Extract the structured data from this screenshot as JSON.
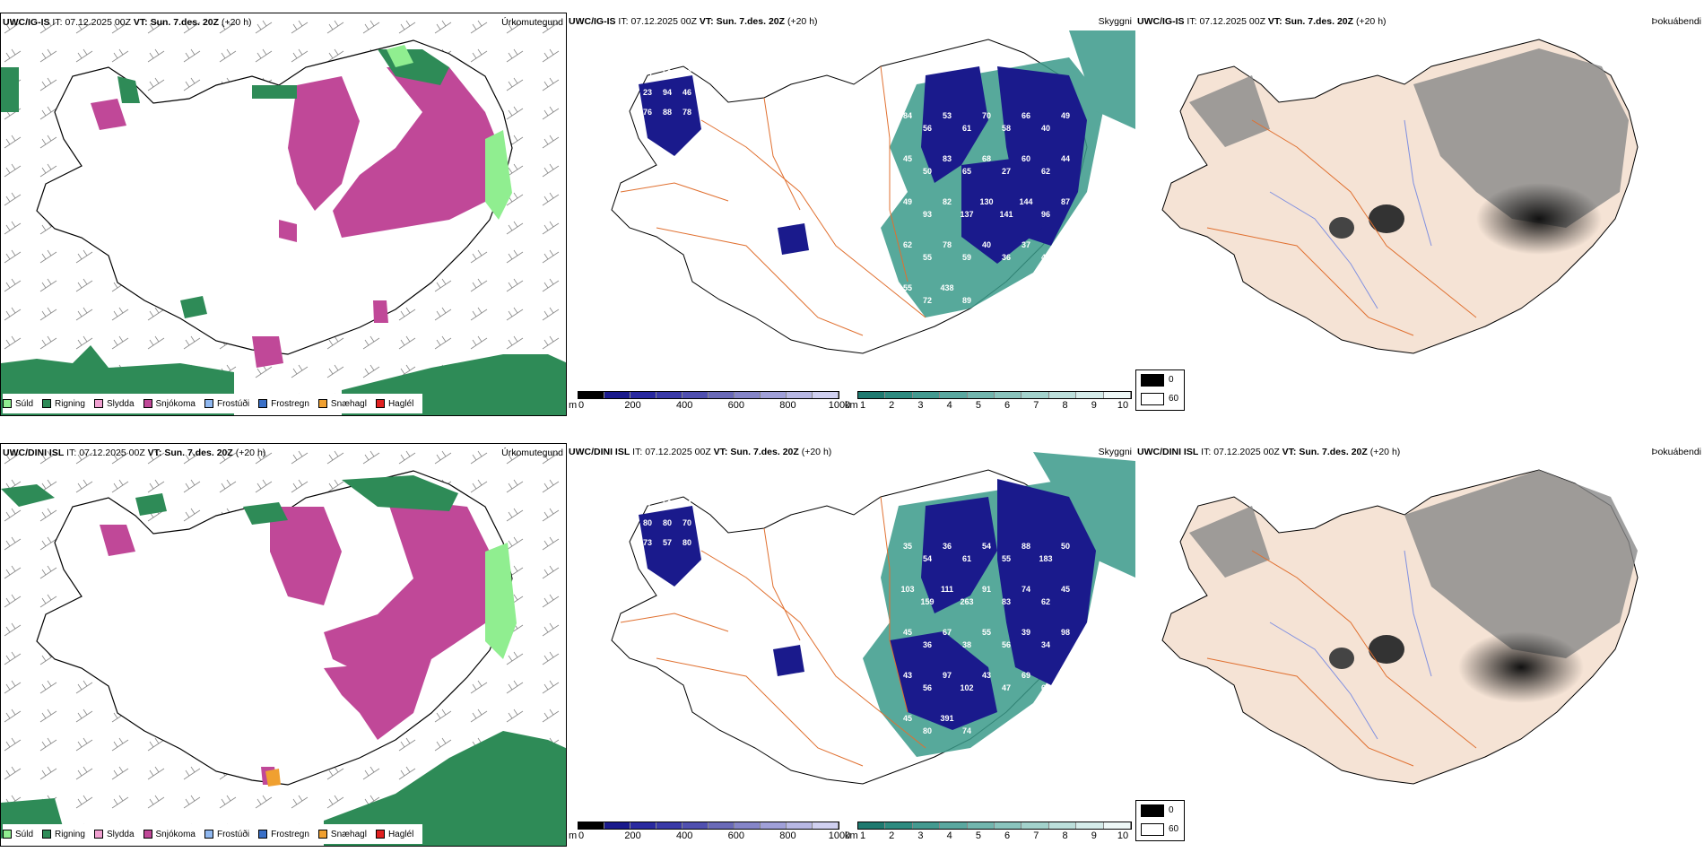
{
  "rows": [
    {
      "id": "ig",
      "model": "UWC/IG-IS",
      "it_label": "IT:",
      "it_value": "07.12.2025 00Z",
      "vt_label": "VT:",
      "vt_value": "Sun. 7.des. 20Z",
      "lead": "(+20 h)",
      "visibility_labels": [
        "94",
        "59",
        "58",
        "23",
        "94",
        "46",
        "76",
        "88",
        "78",
        "84",
        "56",
        "53",
        "61",
        "70",
        "58",
        "66",
        "40",
        "49",
        "45",
        "50",
        "83",
        "65",
        "68",
        "27",
        "60",
        "62",
        "44",
        "49",
        "93",
        "82",
        "137",
        "130",
        "141",
        "144",
        "96",
        "87",
        "62",
        "55",
        "78",
        "59",
        "40",
        "36",
        "37",
        "40",
        "116",
        "55",
        "72",
        "438",
        "89"
      ]
    },
    {
      "id": "dini",
      "model": "UWC/DINI ISL",
      "it_label": "IT:",
      "it_value": "07.12.2025 00Z",
      "vt_label": "VT:",
      "vt_value": "Sun. 7.des. 20Z",
      "lead": "(+20 h)",
      "visibility_labels": [
        "67",
        "50",
        "64",
        "80",
        "80",
        "70",
        "73",
        "57",
        "80",
        "35",
        "54",
        "36",
        "61",
        "54",
        "55",
        "88",
        "183",
        "50",
        "103",
        "159",
        "111",
        "263",
        "91",
        "83",
        "74",
        "62",
        "45",
        "45",
        "36",
        "67",
        "38",
        "55",
        "56",
        "39",
        "34",
        "98",
        "43",
        "56",
        "97",
        "102",
        "43",
        "47",
        "69",
        "64",
        "116",
        "45",
        "80",
        "391",
        "74"
      ]
    }
  ],
  "panels": {
    "precip_type": "Úrkomutegund",
    "visibility": "Skyggni",
    "fog": "Þokuábendi"
  },
  "precip_legend": [
    {
      "label": "Súld",
      "color": "#90ee90"
    },
    {
      "label": "Rigning",
      "color": "#2e8b57"
    },
    {
      "label": "Slydda",
      "color": "#f0a0d0"
    },
    {
      "label": "Snjókoma",
      "color": "#c04898"
    },
    {
      "label": "Frostúði",
      "color": "#90b8f0"
    },
    {
      "label": "Frostregn",
      "color": "#3a70c8"
    },
    {
      "label": "Snæhagl",
      "color": "#f0a030"
    },
    {
      "label": "Haglél",
      "color": "#e02020"
    }
  ],
  "vis_scale_m": {
    "unit": "m",
    "ticks": [
      "0",
      "200",
      "400",
      "600",
      "800",
      "1000"
    ]
  },
  "vis_scale_km": {
    "unit": "km",
    "ticks": [
      "1",
      "2",
      "3",
      "4",
      "5",
      "6",
      "7",
      "8",
      "9",
      "10"
    ]
  },
  "fog_legend": {
    "low": "0",
    "high": "60"
  },
  "colors": {
    "snow": "#c04898",
    "rain": "#2e8b57",
    "drizzle": "#90ee90",
    "vis_dark": "#1a1a8c",
    "vis_teal": "#3a9a8a",
    "land_fog": "#f5e3d5",
    "road": "#e07030",
    "river": "#8090e0"
  }
}
